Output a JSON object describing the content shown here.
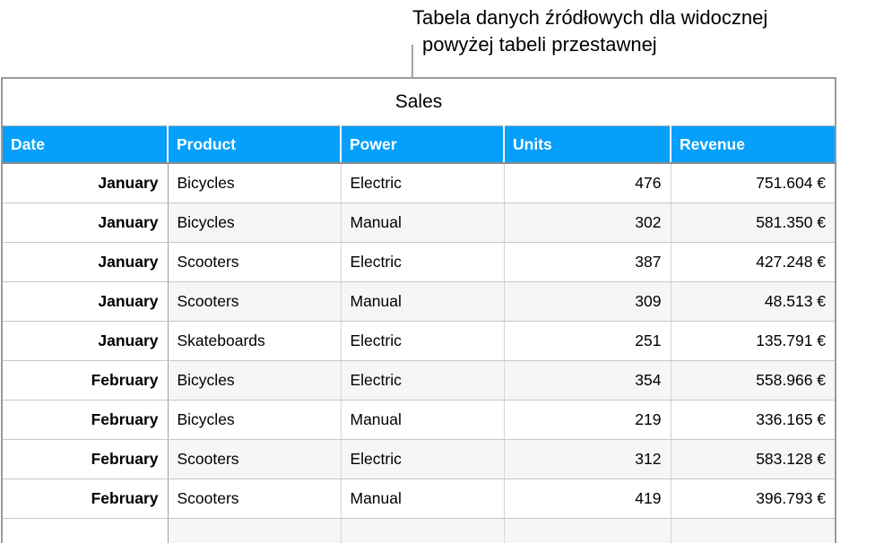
{
  "callout": {
    "line1": "Tabela danych źródłowych dla widocznej",
    "line2": "powyżej tabeli przestawnej"
  },
  "table": {
    "title": "Sales",
    "columns": [
      "Date",
      "Product",
      "Power",
      "Units",
      "Revenue"
    ],
    "rows": [
      [
        "January",
        "Bicycles",
        "Electric",
        "476",
        "751.604 €"
      ],
      [
        "January",
        "Bicycles",
        "Manual",
        "302",
        "581.350 €"
      ],
      [
        "January",
        "Scooters",
        "Electric",
        "387",
        "427.248 €"
      ],
      [
        "January",
        "Scooters",
        "Manual",
        "309",
        "48.513 €"
      ],
      [
        "January",
        "Skateboards",
        "Electric",
        "251",
        "135.791 €"
      ],
      [
        "February",
        "Bicycles",
        "Electric",
        "354",
        "558.966 €"
      ],
      [
        "February",
        "Bicycles",
        "Manual",
        "219",
        "336.165 €"
      ],
      [
        "February",
        "Scooters",
        "Electric",
        "312",
        "583.128 €"
      ],
      [
        "February",
        "Scooters",
        "Manual",
        "419",
        "396.793 €"
      ]
    ],
    "clipped_partial_row": [
      "",
      "",
      "",
      "",
      ""
    ]
  },
  "colors": {
    "header_bg": "#04a0fb",
    "header_text": "#ffffff",
    "alt_row_bg": "#f6f6f6"
  }
}
